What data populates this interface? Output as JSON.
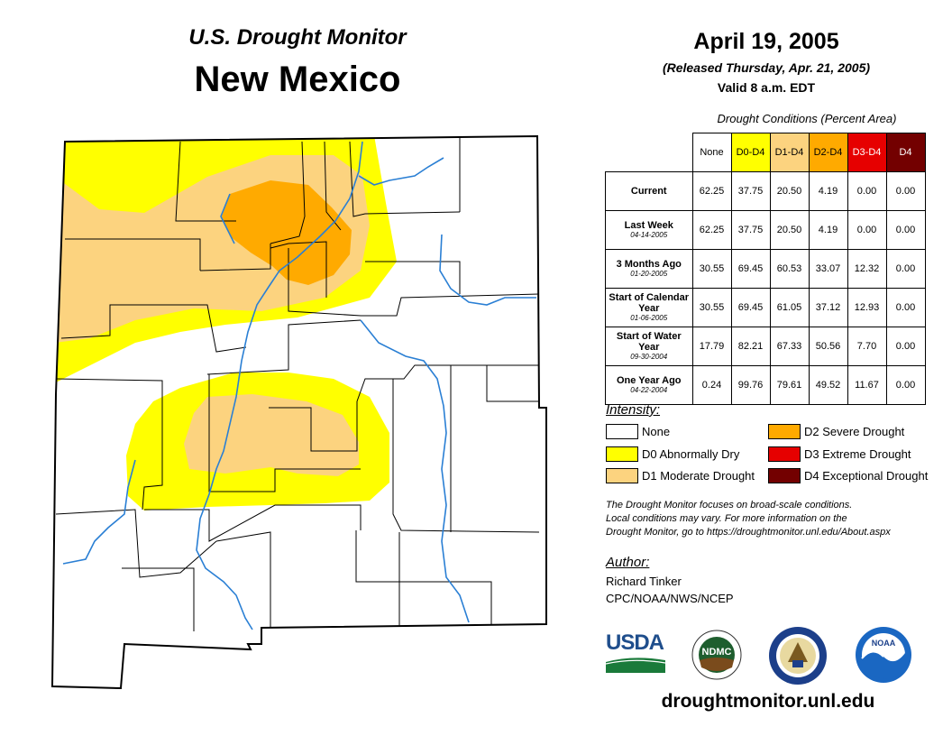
{
  "header": {
    "subtitle": "U.S. Drought Monitor",
    "title": "New Mexico"
  },
  "date": {
    "main": "April 19, 2005",
    "released": "(Released Thursday, Apr. 21, 2005)",
    "valid": "Valid 8 a.m. EDT"
  },
  "table": {
    "caption": "Drought Conditions (Percent Area)",
    "columns": [
      "None",
      "D0-D4",
      "D1-D4",
      "D2-D4",
      "D3-D4",
      "D4"
    ],
    "column_colors": [
      "#ffffff",
      "#ffff00",
      "#fcd37f",
      "#ffaa00",
      "#e60000",
      "#730000"
    ],
    "column_text_colors": [
      "#000000",
      "#000000",
      "#000000",
      "#000000",
      "#ffffff",
      "#ffffff"
    ],
    "rows": [
      {
        "label": "Current",
        "sublabel": "",
        "values": [
          "62.25",
          "37.75",
          "20.50",
          "4.19",
          "0.00",
          "0.00"
        ]
      },
      {
        "label": "Last Week",
        "sublabel": "04-14-2005",
        "values": [
          "62.25",
          "37.75",
          "20.50",
          "4.19",
          "0.00",
          "0.00"
        ]
      },
      {
        "label": "3 Months Ago",
        "sublabel": "01-20-2005",
        "values": [
          "30.55",
          "69.45",
          "60.53",
          "33.07",
          "12.32",
          "0.00"
        ]
      },
      {
        "label": "Start of Calendar Year",
        "sublabel": "01-06-2005",
        "values": [
          "30.55",
          "69.45",
          "61.05",
          "37.12",
          "12.93",
          "0.00"
        ]
      },
      {
        "label": "Start of Water Year",
        "sublabel": "09-30-2004",
        "values": [
          "17.79",
          "82.21",
          "67.33",
          "50.56",
          "7.70",
          "0.00"
        ]
      },
      {
        "label": "One Year Ago",
        "sublabel": "04-22-2004",
        "values": [
          "0.24",
          "99.76",
          "79.61",
          "49.52",
          "11.67",
          "0.00"
        ]
      }
    ]
  },
  "legend": {
    "title": "Intensity:",
    "items": [
      {
        "label": "None",
        "color": "#ffffff"
      },
      {
        "label": "D0 Abnormally Dry",
        "color": "#ffff00"
      },
      {
        "label": "D1 Moderate Drought",
        "color": "#fcd37f"
      },
      {
        "label": "D2 Severe Drought",
        "color": "#ffaa00"
      },
      {
        "label": "D3 Extreme Drought",
        "color": "#e60000"
      },
      {
        "label": "D4 Exceptional Drought",
        "color": "#730000"
      }
    ]
  },
  "note": {
    "line1": "The Drought Monitor focuses on broad-scale conditions.",
    "line2": "Local conditions may vary. For more information on the",
    "line3": "Drought Monitor, go to https://droughtmonitor.unl.edu/About.aspx"
  },
  "author": {
    "title": "Author:",
    "name": "Richard Tinker",
    "org": "CPC/NOAA/NWS/NCEP"
  },
  "logos": {
    "usda": "USDA",
    "ndmc": "NDMC",
    "noaa": "NOAA"
  },
  "website": "droughtmonitor.unl.edu",
  "map_colors": {
    "d0": "#ffff00",
    "d1": "#fcd37f",
    "d2": "#ffaa00",
    "river": "#2a7fd4"
  }
}
